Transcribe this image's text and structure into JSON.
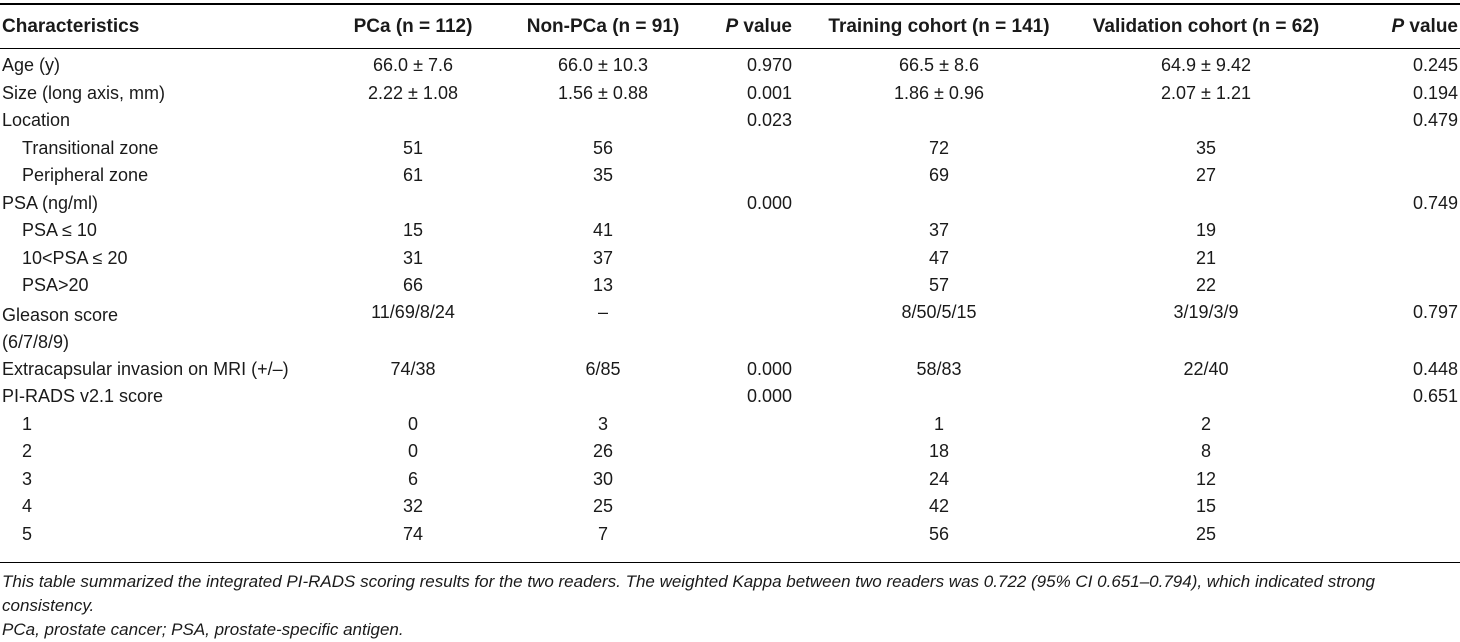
{
  "table": {
    "headers": {
      "characteristics": "Characteristics",
      "pca": "PCa (n = 112)",
      "nonpca": "Non-PCa (n = 91)",
      "p1_italic": "P",
      "p1_rest": " value",
      "training": "Training cohort (n = 141)",
      "validation": "Validation cohort (n = 62)",
      "p2_italic": "P",
      "p2_rest": " value"
    },
    "rows": [
      {
        "label": "Age (y)",
        "pca": "66.0 ± 7.6",
        "nonpca": "66.0 ± 10.3",
        "p1": "0.970",
        "training": "66.5 ± 8.6",
        "validation": "64.9 ± 9.42",
        "p2": "0.245"
      },
      {
        "label": "Size (long axis, mm)",
        "pca": "2.22 ± 1.08",
        "nonpca": "1.56 ± 0.88",
        "p1": "0.001",
        "training": "1.86 ± 0.96",
        "validation": "2.07 ± 1.21",
        "p2": "0.194"
      },
      {
        "label": "Location",
        "pca": "",
        "nonpca": "",
        "p1": "0.023",
        "training": "",
        "validation": "",
        "p2": "0.479"
      },
      {
        "label": "Transitional zone",
        "pca": "51",
        "nonpca": "56",
        "p1": "",
        "training": "72",
        "validation": "35",
        "p2": ""
      },
      {
        "label": "Peripheral zone",
        "pca": "61",
        "nonpca": "35",
        "p1": "",
        "training": "69",
        "validation": "27",
        "p2": ""
      },
      {
        "label": "PSA (ng/ml)",
        "pca": "",
        "nonpca": "",
        "p1": "0.000",
        "training": "",
        "validation": "",
        "p2": "0.749"
      },
      {
        "label": "PSA ≤ 10",
        "pca": "15",
        "nonpca": "41",
        "p1": "",
        "training": "37",
        "validation": "19",
        "p2": ""
      },
      {
        "label": "10<PSA ≤ 20",
        "pca": "31",
        "nonpca": "37",
        "p1": "",
        "training": "47",
        "validation": "21",
        "p2": ""
      },
      {
        "label": "PSA>20",
        "pca": "66",
        "nonpca": "13",
        "p1": "",
        "training": "57",
        "validation": "22",
        "p2": ""
      },
      {
        "label": "Gleason score (6/7/8/9)",
        "pca": "11/69/8/24",
        "nonpca": "–",
        "p1": "",
        "training": "8/50/5/15",
        "validation": "3/19/3/9",
        "p2": "0.797"
      },
      {
        "label": "Extracapsular invasion on MRI (+/–)",
        "pca": "74/38",
        "nonpca": "6/85",
        "p1": "0.000",
        "training": "58/83",
        "validation": "22/40",
        "p2": "0.448"
      },
      {
        "label": "PI-RADS v2.1 score",
        "pca": "",
        "nonpca": "",
        "p1": "0.000",
        "training": "",
        "validation": "",
        "p2": "0.651"
      },
      {
        "label": "1",
        "pca": "0",
        "nonpca": "3",
        "p1": "",
        "training": "1",
        "validation": "2",
        "p2": ""
      },
      {
        "label": "2",
        "pca": "0",
        "nonpca": "26",
        "p1": "",
        "training": "18",
        "validation": "8",
        "p2": ""
      },
      {
        "label": "3",
        "pca": "6",
        "nonpca": "30",
        "p1": "",
        "training": "24",
        "validation": "12",
        "p2": ""
      },
      {
        "label": "4",
        "pca": "32",
        "nonpca": "25",
        "p1": "",
        "training": "42",
        "validation": "15",
        "p2": ""
      },
      {
        "label": "5",
        "pca": "74",
        "nonpca": "7",
        "p1": "",
        "training": "56",
        "validation": "25",
        "p2": ""
      }
    ]
  },
  "footnote": {
    "line1": "This table summarized the integrated PI-RADS scoring results for the two readers. The weighted Kappa between two readers was 0.722 (95% CI 0.651–0.794), which indicated strong consistency.",
    "line2": "PCa, prostate cancer; PSA, prostate-specific antigen."
  }
}
